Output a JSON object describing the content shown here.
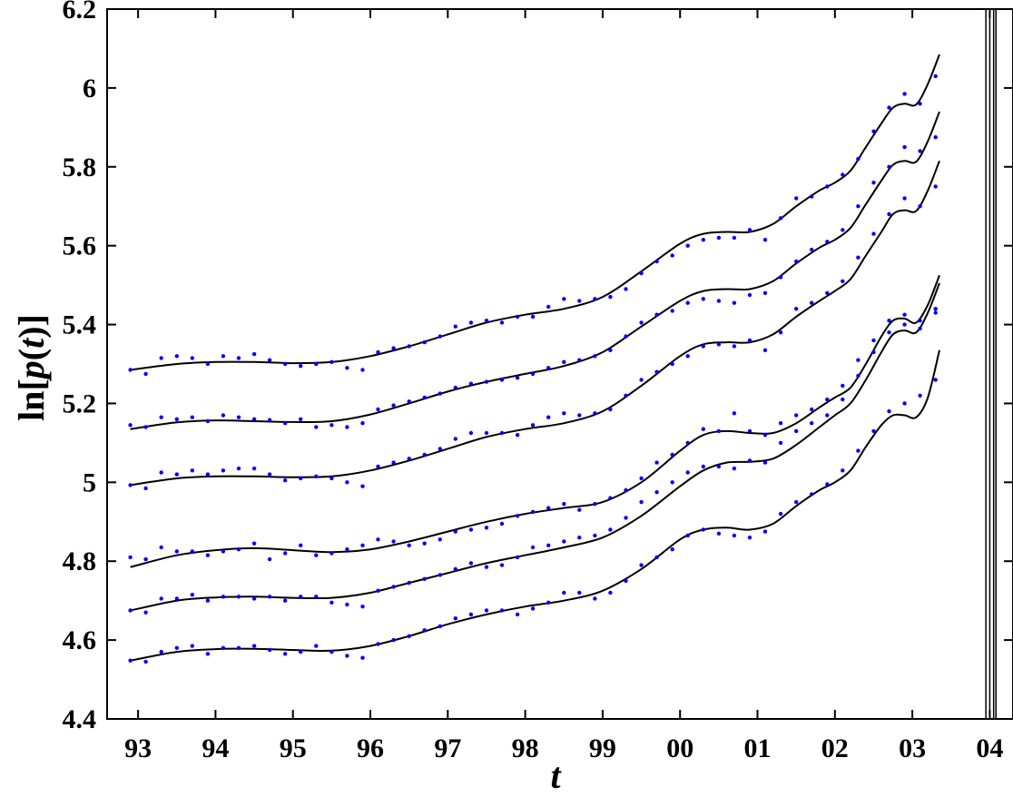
{
  "chart_data": {
    "type": "line",
    "title": "",
    "xlabel": "t",
    "ylabel_prefix": "ln[",
    "ylabel_func": "p",
    "ylabel_paren_open": "(",
    "ylabel_var": "t",
    "ylabel_paren_close": ")",
    "ylabel_suffix": "]",
    "xlim": [
      1992.6,
      2004.3
    ],
    "ylim": [
      4.4,
      6.2
    ],
    "grid": false,
    "legend": "none",
    "colors": {
      "dots": "#0000ff",
      "fit": "#000000",
      "axes": "#000000"
    },
    "x_ticks": [
      {
        "value": 1993,
        "label": "93"
      },
      {
        "value": 1994,
        "label": "94"
      },
      {
        "value": 1995,
        "label": "95"
      },
      {
        "value": 1996,
        "label": "96"
      },
      {
        "value": 1997,
        "label": "97"
      },
      {
        "value": 1998,
        "label": "98"
      },
      {
        "value": 1999,
        "label": "99"
      },
      {
        "value": 2000,
        "label": "00"
      },
      {
        "value": 2001,
        "label": "01"
      },
      {
        "value": 2002,
        "label": "02"
      },
      {
        "value": 2003,
        "label": "03"
      },
      {
        "value": 2004,
        "label": "04"
      }
    ],
    "y_ticks": [
      {
        "value": 4.4,
        "label": "4.4"
      },
      {
        "value": 4.6,
        "label": "4.6"
      },
      {
        "value": 4.8,
        "label": "4.8"
      },
      {
        "value": 5.0,
        "label": "5"
      },
      {
        "value": 5.2,
        "label": "5.2"
      },
      {
        "value": 5.4,
        "label": "5.4"
      },
      {
        "value": 5.6,
        "label": "5.6"
      },
      {
        "value": 5.8,
        "label": "5.8"
      },
      {
        "value": 6.0,
        "label": "6"
      },
      {
        "value": 6.2,
        "label": "6.2"
      }
    ],
    "vertical_lines": [
      2003.95,
      2004.0,
      2004.05,
      2004.08
    ],
    "series": [
      {
        "fit_x": [
          1992.9,
          1993.5,
          1994.0,
          1994.5,
          1995.0,
          1995.5,
          1996.0,
          1996.5,
          1997.0,
          1997.5,
          1998.0,
          1998.5,
          1999.0,
          1999.5,
          2000.0,
          2000.3,
          2000.6,
          2000.9,
          2001.2,
          2001.5,
          2001.8,
          2002.0,
          2002.2,
          2002.4,
          2002.6,
          2002.75,
          2002.9,
          2003.05,
          2003.2,
          2003.35
        ],
        "fit_y": [
          5.285,
          5.3,
          5.305,
          5.305,
          5.302,
          5.305,
          5.32,
          5.345,
          5.375,
          5.405,
          5.425,
          5.44,
          5.47,
          5.535,
          5.605,
          5.63,
          5.635,
          5.635,
          5.655,
          5.7,
          5.74,
          5.76,
          5.79,
          5.85,
          5.91,
          5.95,
          5.96,
          5.958,
          6.01,
          6.085
        ],
        "dots_x": [
          1992.9,
          1993.1,
          1993.3,
          1993.5,
          1993.7,
          1993.9,
          1994.1,
          1994.3,
          1994.5,
          1994.7,
          1994.9,
          1995.1,
          1995.3,
          1995.5,
          1995.7,
          1995.9,
          1996.1,
          1996.3,
          1996.5,
          1996.7,
          1996.9,
          1997.1,
          1997.3,
          1997.5,
          1997.7,
          1997.9,
          1998.1,
          1998.3,
          1998.5,
          1998.7,
          1998.9,
          1999.1,
          1999.3,
          1999.5,
          1999.7,
          1999.9,
          2000.1,
          2000.3,
          2000.5,
          2000.7,
          2000.9,
          2001.1,
          2001.3,
          2001.5,
          2001.7,
          2001.9,
          2002.1,
          2002.3,
          2002.5,
          2002.7,
          2002.9,
          2003.1,
          2003.3
        ],
        "dots_y": [
          5.285,
          5.275,
          5.315,
          5.32,
          5.315,
          5.3,
          5.32,
          5.315,
          5.325,
          5.31,
          5.3,
          5.295,
          5.3,
          5.305,
          5.29,
          5.285,
          5.33,
          5.34,
          5.345,
          5.355,
          5.37,
          5.395,
          5.405,
          5.41,
          5.405,
          5.42,
          5.42,
          5.445,
          5.465,
          5.46,
          5.465,
          5.47,
          5.49,
          5.53,
          5.56,
          5.575,
          5.6,
          5.615,
          5.62,
          5.62,
          5.64,
          5.615,
          5.67,
          5.72,
          5.725,
          5.75,
          5.78,
          5.82,
          5.89,
          5.95,
          5.985,
          5.96,
          6.03
        ]
      },
      {
        "fit_x": [
          1992.9,
          1993.5,
          1994.0,
          1994.5,
          1995.0,
          1995.5,
          1996.0,
          1996.5,
          1997.0,
          1997.5,
          1998.0,
          1998.5,
          1999.0,
          1999.5,
          2000.0,
          2000.3,
          2000.6,
          2000.9,
          2001.2,
          2001.5,
          2001.8,
          2002.0,
          2002.2,
          2002.4,
          2002.6,
          2002.75,
          2002.9,
          2003.05,
          2003.2,
          2003.35
        ],
        "fit_y": [
          5.135,
          5.152,
          5.157,
          5.155,
          5.153,
          5.155,
          5.172,
          5.2,
          5.23,
          5.255,
          5.275,
          5.295,
          5.33,
          5.395,
          5.46,
          5.485,
          5.49,
          5.49,
          5.51,
          5.555,
          5.595,
          5.615,
          5.645,
          5.705,
          5.765,
          5.805,
          5.815,
          5.813,
          5.865,
          5.94
        ],
        "dots_x": [
          1992.9,
          1993.1,
          1993.3,
          1993.5,
          1993.7,
          1993.9,
          1994.1,
          1994.3,
          1994.5,
          1994.7,
          1994.9,
          1995.1,
          1995.3,
          1995.5,
          1995.7,
          1995.9,
          1996.1,
          1996.3,
          1996.5,
          1996.7,
          1996.9,
          1997.1,
          1997.3,
          1997.5,
          1997.7,
          1997.9,
          1998.1,
          1998.3,
          1998.5,
          1998.7,
          1998.9,
          1999.1,
          1999.3,
          1999.5,
          1999.7,
          1999.9,
          2000.1,
          2000.3,
          2000.5,
          2000.7,
          2000.9,
          2001.1,
          2001.3,
          2001.5,
          2001.7,
          2001.9,
          2002.1,
          2002.3,
          2002.5,
          2002.7,
          2002.9,
          2003.1,
          2003.3
        ],
        "dots_y": [
          5.145,
          5.14,
          5.165,
          5.16,
          5.165,
          5.155,
          5.17,
          5.165,
          5.16,
          5.158,
          5.15,
          5.16,
          5.14,
          5.145,
          5.14,
          5.15,
          5.185,
          5.195,
          5.205,
          5.215,
          5.225,
          5.24,
          5.25,
          5.255,
          5.26,
          5.265,
          5.275,
          5.29,
          5.305,
          5.31,
          5.32,
          5.335,
          5.37,
          5.405,
          5.425,
          5.435,
          5.455,
          5.465,
          5.46,
          5.455,
          5.475,
          5.48,
          5.52,
          5.56,
          5.59,
          5.61,
          5.64,
          5.7,
          5.76,
          5.8,
          5.85,
          5.84,
          5.875
        ]
      },
      {
        "fit_x": [
          1992.9,
          1993.5,
          1994.0,
          1994.5,
          1995.0,
          1995.5,
          1996.0,
          1996.5,
          1997.0,
          1997.5,
          1998.0,
          1998.5,
          1999.0,
          1999.5,
          2000.0,
          2000.3,
          2000.6,
          2000.9,
          2001.2,
          2001.5,
          2001.8,
          2002.0,
          2002.2,
          2002.4,
          2002.6,
          2002.75,
          2002.9,
          2003.05,
          2003.2,
          2003.35
        ],
        "fit_y": [
          4.993,
          5.01,
          5.015,
          5.015,
          5.013,
          5.015,
          5.03,
          5.055,
          5.085,
          5.115,
          5.135,
          5.15,
          5.18,
          5.245,
          5.32,
          5.35,
          5.355,
          5.355,
          5.375,
          5.42,
          5.46,
          5.485,
          5.515,
          5.575,
          5.635,
          5.68,
          5.69,
          5.688,
          5.74,
          5.815
        ],
        "dots_x": [
          1992.9,
          1993.1,
          1993.3,
          1993.5,
          1993.7,
          1993.9,
          1994.1,
          1994.3,
          1994.5,
          1994.7,
          1994.9,
          1995.1,
          1995.3,
          1995.5,
          1995.7,
          1995.9,
          1996.1,
          1996.3,
          1996.5,
          1996.7,
          1996.9,
          1997.1,
          1997.3,
          1997.5,
          1997.7,
          1997.9,
          1998.1,
          1998.3,
          1998.5,
          1998.7,
          1998.9,
          1999.1,
          1999.3,
          1999.5,
          1999.7,
          1999.9,
          2000.1,
          2000.3,
          2000.5,
          2000.7,
          2000.9,
          2001.1,
          2001.3,
          2001.5,
          2001.7,
          2001.9,
          2002.1,
          2002.3,
          2002.5,
          2002.7,
          2002.9,
          2003.1,
          2003.3
        ],
        "dots_y": [
          4.993,
          4.985,
          5.025,
          5.02,
          5.03,
          5.02,
          5.03,
          5.035,
          5.035,
          5.02,
          5.005,
          5.01,
          5.015,
          5.01,
          5.0,
          4.99,
          5.04,
          5.05,
          5.06,
          5.07,
          5.085,
          5.11,
          5.125,
          5.125,
          5.125,
          5.12,
          5.145,
          5.165,
          5.175,
          5.17,
          5.175,
          5.185,
          5.22,
          5.26,
          5.28,
          5.3,
          5.32,
          5.345,
          5.35,
          5.345,
          5.36,
          5.335,
          5.38,
          5.44,
          5.455,
          5.48,
          5.51,
          5.57,
          5.63,
          5.68,
          5.72,
          5.7,
          5.75
        ]
      },
      {
        "fit_x": [
          1992.9,
          1993.5,
          1994.0,
          1994.5,
          1995.0,
          1995.5,
          1996.0,
          1996.5,
          1997.0,
          1997.5,
          1998.0,
          1998.5,
          1999.0,
          1999.5,
          2000.0,
          2000.3,
          2000.6,
          2000.9,
          2001.2,
          2001.5,
          2001.8,
          2002.0,
          2002.2,
          2002.4,
          2002.6,
          2002.75,
          2002.9,
          2003.05,
          2003.2,
          2003.35
        ],
        "fit_y": [
          4.785,
          4.815,
          4.828,
          4.833,
          4.828,
          4.823,
          4.83,
          4.85,
          4.875,
          4.9,
          4.92,
          4.935,
          4.95,
          5.0,
          5.08,
          5.12,
          5.13,
          5.125,
          5.125,
          5.15,
          5.19,
          5.215,
          5.24,
          5.3,
          5.37,
          5.41,
          5.415,
          5.405,
          5.45,
          5.525
        ],
        "dots_x": [
          1992.9,
          1993.1,
          1993.3,
          1993.5,
          1993.7,
          1993.9,
          1994.1,
          1994.3,
          1994.5,
          1994.7,
          1994.9,
          1995.1,
          1995.3,
          1995.5,
          1995.7,
          1995.9,
          1996.1,
          1996.3,
          1996.5,
          1996.7,
          1996.9,
          1997.1,
          1997.3,
          1997.5,
          1997.7,
          1997.9,
          1998.1,
          1998.3,
          1998.5,
          1998.7,
          1998.9,
          1999.1,
          1999.3,
          1999.5,
          1999.7,
          1999.9,
          2000.1,
          2000.3,
          2000.5,
          2000.7,
          2000.9,
          2001.1,
          2001.3,
          2001.5,
          2001.7,
          2001.9,
          2002.1,
          2002.3,
          2002.5,
          2002.7,
          2002.9,
          2003.1,
          2003.3
        ],
        "dots_y": [
          4.81,
          4.805,
          4.835,
          4.825,
          4.825,
          4.815,
          4.825,
          4.83,
          4.845,
          4.805,
          4.82,
          4.84,
          4.815,
          4.82,
          4.83,
          4.84,
          4.855,
          4.85,
          4.84,
          4.845,
          4.855,
          4.875,
          4.88,
          4.885,
          4.895,
          4.915,
          4.925,
          4.935,
          4.945,
          4.93,
          4.945,
          4.96,
          4.98,
          5.01,
          5.05,
          5.07,
          5.1,
          5.135,
          5.13,
          5.175,
          5.13,
          5.12,
          5.15,
          5.17,
          5.185,
          5.21,
          5.245,
          5.31,
          5.36,
          5.41,
          5.425,
          5.41,
          5.44
        ]
      },
      {
        "fit_x": [
          1992.9,
          1993.5,
          1994.0,
          1994.5,
          1995.0,
          1995.5,
          1996.0,
          1996.5,
          1997.0,
          1997.5,
          1998.0,
          1998.5,
          1999.0,
          1999.5,
          2000.0,
          2000.3,
          2000.6,
          2000.9,
          2001.2,
          2001.5,
          2001.8,
          2002.0,
          2002.2,
          2002.4,
          2002.6,
          2002.75,
          2002.9,
          2003.05,
          2003.2,
          2003.35
        ],
        "fit_y": [
          4.675,
          4.7,
          4.708,
          4.71,
          4.707,
          4.707,
          4.72,
          4.745,
          4.77,
          4.795,
          4.815,
          4.835,
          4.86,
          4.915,
          4.99,
          5.03,
          5.05,
          5.052,
          5.06,
          5.095,
          5.14,
          5.17,
          5.2,
          5.26,
          5.33,
          5.375,
          5.385,
          5.38,
          5.43,
          5.505
        ],
        "dots_x": [
          1992.9,
          1993.1,
          1993.3,
          1993.5,
          1993.7,
          1993.9,
          1994.1,
          1994.3,
          1994.5,
          1994.7,
          1994.9,
          1995.1,
          1995.3,
          1995.5,
          1995.7,
          1995.9,
          1996.1,
          1996.3,
          1996.5,
          1996.7,
          1996.9,
          1997.1,
          1997.3,
          1997.5,
          1997.7,
          1997.9,
          1998.1,
          1998.3,
          1998.5,
          1998.7,
          1998.9,
          1999.1,
          1999.3,
          1999.5,
          1999.7,
          1999.9,
          2000.1,
          2000.3,
          2000.5,
          2000.7,
          2000.9,
          2001.1,
          2001.3,
          2001.5,
          2001.7,
          2001.9,
          2002.1,
          2002.3,
          2002.5,
          2002.7,
          2002.9,
          2003.1,
          2003.3
        ],
        "dots_y": [
          4.675,
          4.67,
          4.705,
          4.705,
          4.715,
          4.7,
          4.71,
          4.71,
          4.705,
          4.71,
          4.7,
          4.71,
          4.71,
          4.695,
          4.69,
          4.685,
          4.725,
          4.735,
          4.745,
          4.755,
          4.765,
          4.78,
          4.795,
          4.785,
          4.79,
          4.81,
          4.835,
          4.84,
          4.85,
          4.86,
          4.865,
          4.88,
          4.91,
          4.95,
          4.975,
          5.0,
          5.025,
          5.04,
          5.04,
          5.035,
          5.055,
          5.05,
          5.1,
          5.13,
          5.15,
          5.17,
          5.21,
          5.27,
          5.33,
          5.38,
          5.4,
          5.39,
          5.43
        ]
      },
      {
        "fit_x": [
          1992.9,
          1993.5,
          1994.0,
          1994.5,
          1995.0,
          1995.5,
          1996.0,
          1996.5,
          1997.0,
          1997.5,
          1998.0,
          1998.5,
          1999.0,
          1999.5,
          2000.0,
          2000.3,
          2000.6,
          2000.9,
          2001.2,
          2001.5,
          2001.8,
          2002.0,
          2002.2,
          2002.4,
          2002.6,
          2002.75,
          2002.9,
          2003.05,
          2003.2,
          2003.35
        ],
        "fit_y": [
          4.548,
          4.57,
          4.577,
          4.578,
          4.575,
          4.573,
          4.585,
          4.61,
          4.64,
          4.665,
          4.685,
          4.7,
          4.725,
          4.78,
          4.855,
          4.88,
          4.885,
          4.88,
          4.895,
          4.94,
          4.98,
          5.0,
          5.03,
          5.09,
          5.145,
          5.17,
          5.17,
          5.165,
          5.215,
          5.335
        ],
        "dots_x": [
          1992.9,
          1993.1,
          1993.3,
          1993.5,
          1993.7,
          1993.9,
          1994.1,
          1994.3,
          1994.5,
          1994.7,
          1994.9,
          1995.1,
          1995.3,
          1995.5,
          1995.7,
          1995.9,
          1996.1,
          1996.3,
          1996.5,
          1996.7,
          1996.9,
          1997.1,
          1997.3,
          1997.5,
          1997.7,
          1997.9,
          1998.1,
          1998.3,
          1998.5,
          1998.7,
          1998.9,
          1999.1,
          1999.3,
          1999.5,
          1999.7,
          1999.9,
          2000.1,
          2000.3,
          2000.5,
          2000.7,
          2000.9,
          2001.1,
          2001.3,
          2001.5,
          2001.7,
          2001.9,
          2002.1,
          2002.3,
          2002.5,
          2002.7,
          2002.9,
          2003.1,
          2003.3
        ],
        "dots_y": [
          4.548,
          4.545,
          4.57,
          4.58,
          4.585,
          4.565,
          4.58,
          4.58,
          4.585,
          4.575,
          4.565,
          4.57,
          4.585,
          4.57,
          4.56,
          4.555,
          4.59,
          4.6,
          4.61,
          4.625,
          4.635,
          4.655,
          4.665,
          4.675,
          4.675,
          4.665,
          4.68,
          4.695,
          4.72,
          4.72,
          4.705,
          4.72,
          4.75,
          4.79,
          4.81,
          4.83,
          4.865,
          4.88,
          4.87,
          4.865,
          4.86,
          4.875,
          4.92,
          4.95,
          4.97,
          4.995,
          5.03,
          5.08,
          5.13,
          5.18,
          5.2,
          5.22,
          5.26
        ]
      }
    ]
  }
}
